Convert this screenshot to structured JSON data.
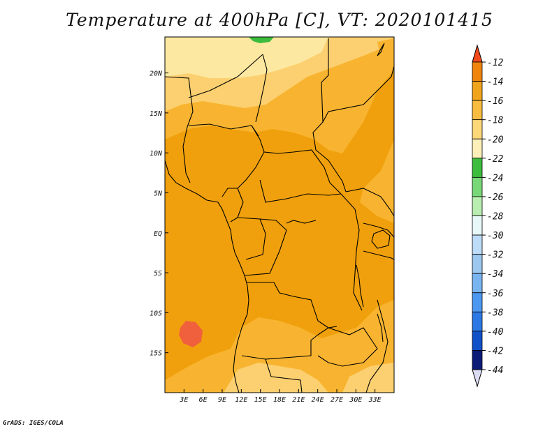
{
  "chart_data": {
    "type": "heatmap",
    "title": "Temperature at 400hPa [C], VT: 2020101415",
    "variable": "Temperature",
    "level": "400hPa",
    "units": "C",
    "valid_time": "2020101415",
    "xlim": [
      0,
      36
    ],
    "ylim": [
      -20,
      24.5
    ],
    "x_ticks": [
      {
        "value": 3,
        "label": "3E"
      },
      {
        "value": 6,
        "label": "6E"
      },
      {
        "value": 9,
        "label": "9E"
      },
      {
        "value": 12,
        "label": "12E"
      },
      {
        "value": 15,
        "label": "15E"
      },
      {
        "value": 18,
        "label": "18E"
      },
      {
        "value": 21,
        "label": "21E"
      },
      {
        "value": 24,
        "label": "24E"
      },
      {
        "value": 27,
        "label": "27E"
      },
      {
        "value": 30,
        "label": "30E"
      },
      {
        "value": 33,
        "label": "33E"
      }
    ],
    "y_ticks": [
      {
        "value": 20,
        "label": "20N"
      },
      {
        "value": 15,
        "label": "15N"
      },
      {
        "value": 10,
        "label": "10N"
      },
      {
        "value": 5,
        "label": "5N"
      },
      {
        "value": 0,
        "label": "EQ"
      },
      {
        "value": -5,
        "label": "5S"
      },
      {
        "value": -10,
        "label": "10S"
      },
      {
        "value": -15,
        "label": "15S"
      }
    ],
    "colorbar": {
      "labels": [
        "-12",
        "-14",
        "-16",
        "-18",
        "-20",
        "-22",
        "-24",
        "-26",
        "-28",
        "-30",
        "-32",
        "-34",
        "-36",
        "-38",
        "-40",
        "-42",
        "-44"
      ],
      "colors": [
        "#f0603c",
        "#f0840c",
        "#f0a41c",
        "#f8bc40",
        "#fcd878",
        "#fcf0b8",
        "#3cbc3c",
        "#78d878",
        "#b8eeb0",
        "#e8f8f8",
        "#bcdcf8",
        "#9cc8f0",
        "#78b4f0",
        "#4c98f0",
        "#2c78e4",
        "#1050c8",
        "#0c1a78",
        "#dcdcf4"
      ],
      "top_arrow_color": "#f04a1c",
      "bottom_arrow_color": "#dcdcf4"
    },
    "field_colors": {
      "t_minus_14_to_12": "#f0603c",
      "t_minus_16_to_14": "#f0a00c",
      "t_minus_18_to_16": "#f8b430",
      "t_minus_20_to_18": "#fcd070",
      "t_minus_22_to_20": "#fce8a0",
      "t_minus_24_to_22": "#3cbc3c"
    }
  },
  "credit": "GrADS: IGES/COLA"
}
